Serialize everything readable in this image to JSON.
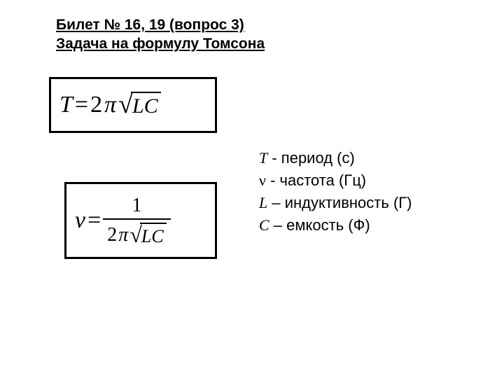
{
  "header": {
    "line1": "Билет № 16, 19 (вопрос 3)",
    "line2": "Задача на формулу Томсона"
  },
  "formulas": {
    "f1": {
      "lhs": "T",
      "eq": " = ",
      "coef": "2",
      "pi": "π",
      "rad_LC": "LC"
    },
    "f2": {
      "lhs_nu": "ν",
      "eq": " = ",
      "num": "1",
      "den_coef": "2",
      "den_pi": "π",
      "den_rad": "LC"
    }
  },
  "legend": {
    "l1_sym": "T",
    "l1_text": " - период (с)",
    "l2_sym": "ν",
    "l2_text": " - частота (Гц)",
    "l3_sym": "L",
    "l3_text": " – индуктивность (Г)",
    "l4_sym": "C",
    "l4_text": " – емкость (Ф)"
  },
  "style": {
    "border_color": "#000000",
    "background": "#ffffff",
    "header_fontsize": 21,
    "formula_fontsize": 34,
    "legend_fontsize": 22
  }
}
